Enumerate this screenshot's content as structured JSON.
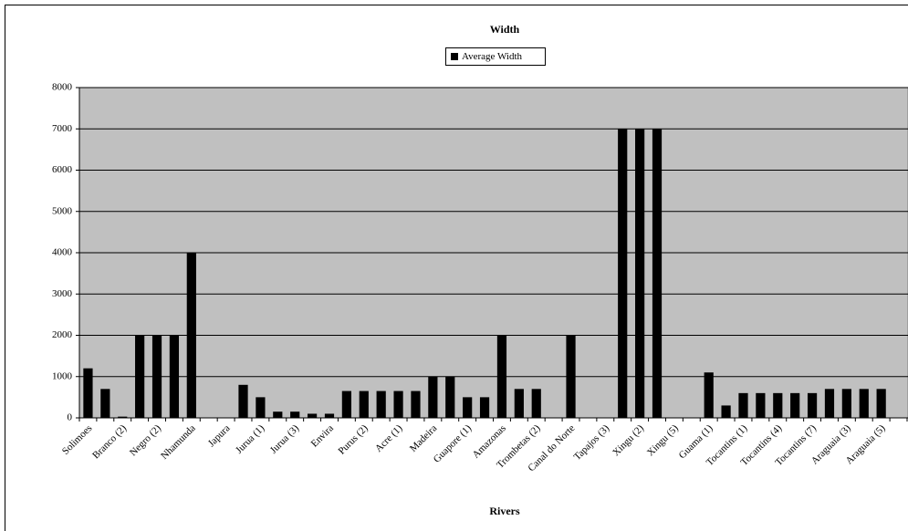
{
  "chart_data": {
    "type": "bar",
    "title": "Width",
    "x_label": "Rivers",
    "categories": [
      "Solimoes",
      null,
      "Branco (2)",
      null,
      "Negro (2)",
      null,
      "Nhamunda",
      null,
      "Japura",
      null,
      "Jurua (1)",
      null,
      "Jurua (3)",
      null,
      "Envira",
      null,
      "Purus (2)",
      null,
      "Acre (1)",
      null,
      "Madeira",
      null,
      "Guapore (1)",
      null,
      "Amazonas",
      null,
      "Trombetas (2)",
      null,
      "Canal do Norte",
      null,
      "Tapajos (3)",
      null,
      "Xingu (2)",
      null,
      "Xingu (5)",
      null,
      "Guama (1)",
      null,
      "Tocantins (1)",
      null,
      "Tocantins (4)",
      null,
      "Tocantins (7)",
      null,
      "Araguaia (3)",
      null,
      "Araguaia (5)",
      null
    ],
    "series": [
      {
        "name": "Average Width",
        "color": "#000000",
        "values": [
          1200,
          700,
          30,
          2000,
          2000,
          2000,
          4000,
          null,
          null,
          800,
          500,
          150,
          150,
          100,
          100,
          650,
          650,
          650,
          650,
          650,
          1000,
          1000,
          500,
          500,
          2000,
          700,
          700,
          null,
          2000,
          null,
          null,
          7000,
          7000,
          7000,
          null,
          null,
          1100,
          300,
          600,
          600,
          600,
          600,
          600,
          700,
          700,
          700,
          700,
          null
        ]
      }
    ],
    "ylim": [
      0,
      8000
    ],
    "yticks": [
      0,
      1000,
      2000,
      3000,
      4000,
      5000,
      6000,
      7000,
      8000
    ],
    "grid": true,
    "plot_background": "#c0c0c0",
    "legend": "top"
  }
}
